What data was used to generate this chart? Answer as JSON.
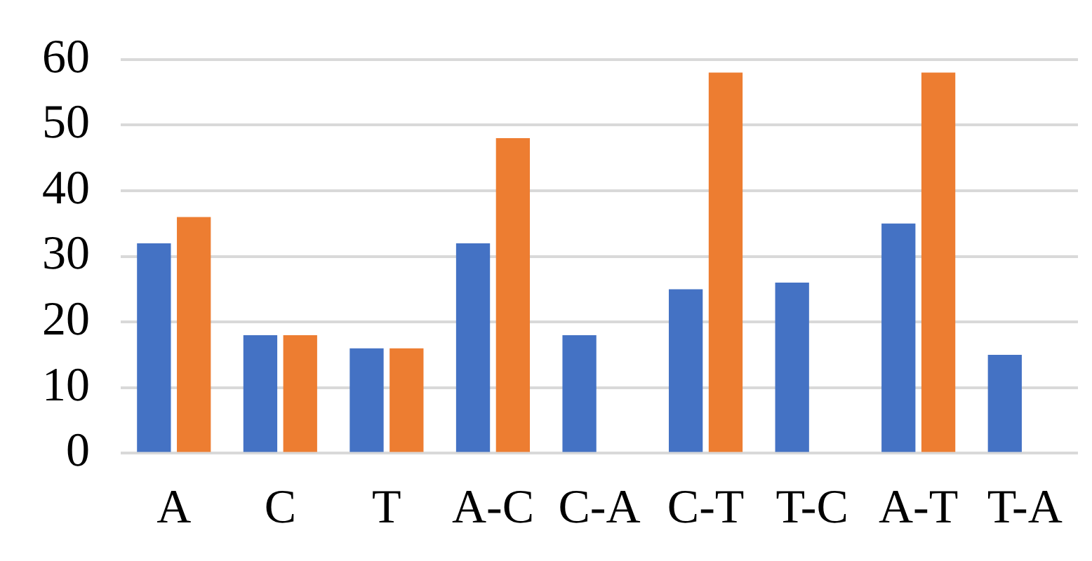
{
  "chart_data": {
    "type": "bar",
    "categories": [
      "A",
      "C",
      "T",
      "A-C",
      "C-A",
      "C-T",
      "T-C",
      "A-T",
      "T-A"
    ],
    "series": [
      {
        "color": "#4472c4",
        "values": [
          32,
          18,
          16,
          32,
          18,
          25,
          26,
          35,
          15
        ]
      },
      {
        "color": "#ed7d31",
        "values": [
          36,
          18,
          16,
          48,
          null,
          58,
          null,
          58,
          null
        ]
      }
    ],
    "ylim": [
      0,
      60
    ],
    "yticks": [
      0,
      10,
      20,
      30,
      40,
      50,
      60
    ],
    "grid": "y",
    "legend": false
  }
}
